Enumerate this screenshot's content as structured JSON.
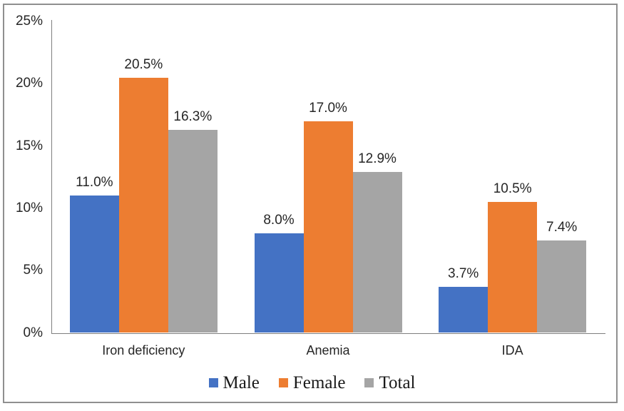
{
  "chart_data": {
    "type": "bar",
    "title": "",
    "categories": [
      "Iron deficiency",
      "Anemia",
      "IDA"
    ],
    "series": [
      {
        "name": "Male",
        "color": "#4472C4",
        "values": [
          11.0,
          8.0,
          3.7
        ]
      },
      {
        "name": "Female",
        "color": "#ED7D31",
        "values": [
          20.5,
          17.0,
          10.5
        ]
      },
      {
        "name": "Total",
        "color": "#A5A5A5",
        "values": [
          16.3,
          12.9,
          7.4
        ]
      }
    ],
    "ylim": [
      0,
      25
    ],
    "ytick_step": 5,
    "ytick_suffix": "%",
    "data_label_decimals": 1,
    "data_label_suffix": "%",
    "grid": false,
    "legend_position": "bottom",
    "xlabel": "",
    "ylabel": ""
  },
  "colors": {
    "background": "#FFFFFF",
    "frame_border": "#8F8F8F",
    "axis_line": "#7F7F7F",
    "text": "#262626"
  }
}
